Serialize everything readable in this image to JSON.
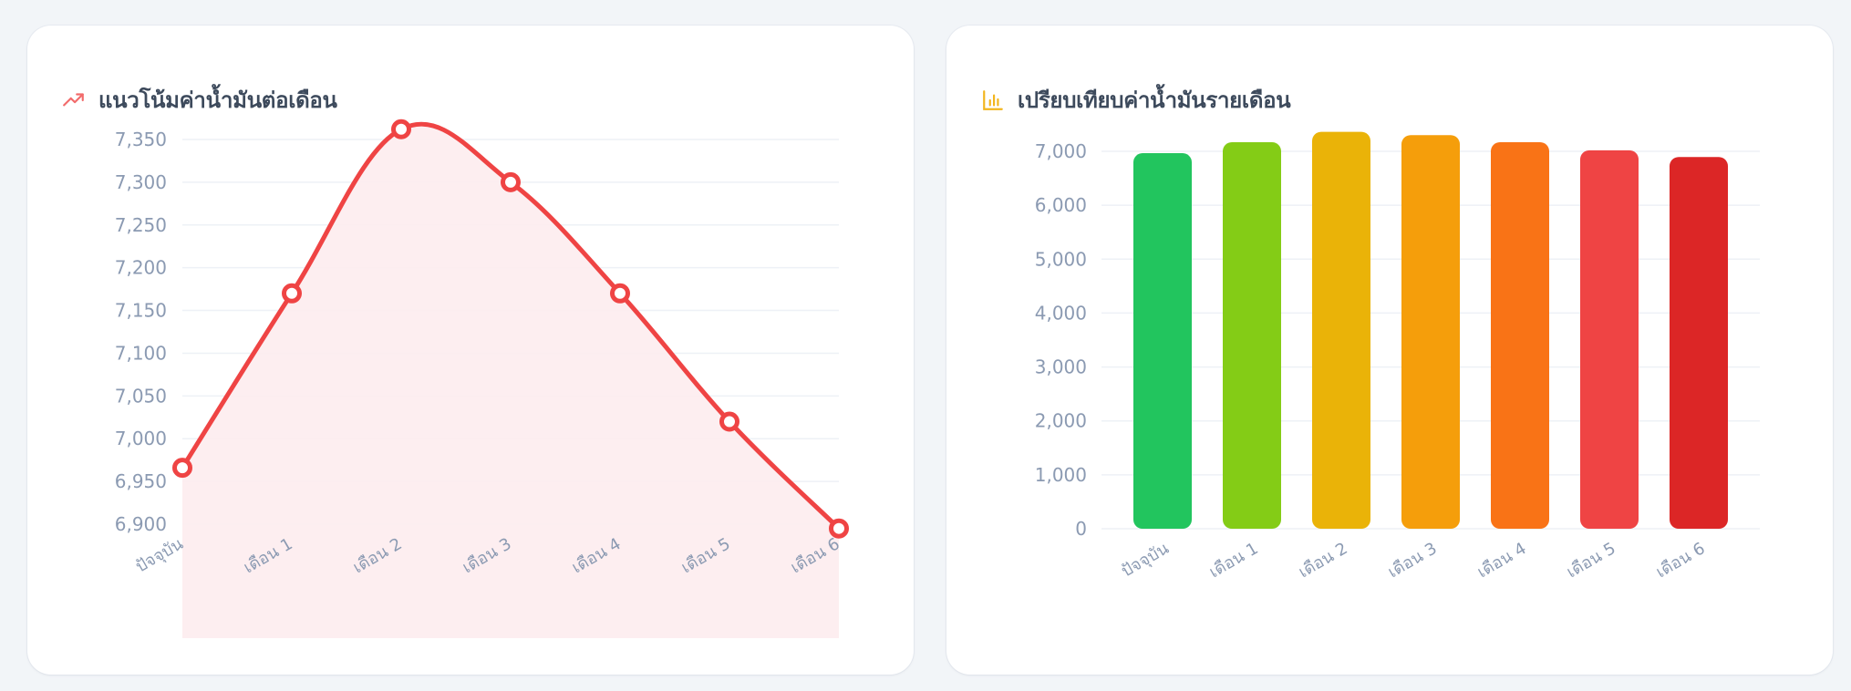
{
  "page": {
    "background": "#f2f5f8"
  },
  "cards": {
    "trend": {
      "title": "แนวโน้มค่าน้ำมันต่อเดือน",
      "icon": "trending-up-icon",
      "icon_color": "#f26b6b"
    },
    "compare": {
      "title": "เปรียบเทียบค่าน้ำมันรายเดือน",
      "icon": "bar-chart-icon",
      "icon_color": "#f2b51d"
    }
  },
  "chart_data": [
    {
      "type": "area",
      "title": "แนวโน้มค่าน้ำมันต่อเดือน",
      "xlabel": "",
      "ylabel": "",
      "categories": [
        "ปัจจุบัน",
        "เดือน 1",
        "เดือน 2",
        "เดือน 3",
        "เดือน 4",
        "เดือน 5",
        "เดือน 6"
      ],
      "values": [
        6966,
        7170,
        7362,
        7300,
        7170,
        7020,
        6895
      ],
      "y_ticks": [
        "6,900",
        "6,950",
        "7,000",
        "7,050",
        "7,100",
        "7,150",
        "7,200",
        "7,250",
        "7,300",
        "7,350"
      ],
      "ylim": [
        6900,
        7350
      ],
      "grid": true,
      "legend": "none",
      "line_color": "#ef4444",
      "fill_color": "#fdecee",
      "smooth": true
    },
    {
      "type": "bar",
      "title": "เปรียบเทียบค่าน้ำมันรายเดือน",
      "xlabel": "",
      "ylabel": "",
      "categories": [
        "ปัจจุบัน",
        "เดือน 1",
        "เดือน 2",
        "เดือน 3",
        "เดือน 4",
        "เดือน 5",
        "เดือน 6"
      ],
      "values": [
        6966,
        7170,
        7362,
        7300,
        7170,
        7020,
        6895
      ],
      "bar_colors": [
        "#22c55e",
        "#84cc16",
        "#eab308",
        "#f59e0b",
        "#f97316",
        "#ef4444",
        "#dc2626"
      ],
      "y_ticks": [
        "0",
        "1,000",
        "2,000",
        "3,000",
        "4,000",
        "5,000",
        "6,000",
        "7,000"
      ],
      "ylim": [
        0,
        7000
      ],
      "grid": true,
      "legend": "none"
    }
  ]
}
